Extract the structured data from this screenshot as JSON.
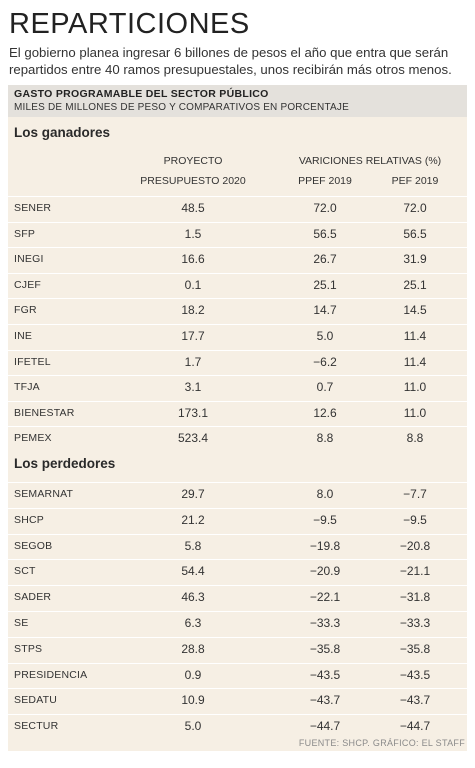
{
  "title": "REPARTICIONES",
  "subtitle": "El gobierno planea ingresar 6 billones de pesos el año que entra que serán repartidos entre 40 ramos presupuestales, unos recibirán más otros menos.",
  "panel": {
    "header_title": "GASTO PROGRAMABLE DEL SECTOR PÚBLICO",
    "header_subtitle": "MILES DE MILLONES DE PESO Y COMPARATIVOS EN PORCENTAJE"
  },
  "columns": {
    "proyecto_line1": "PROYECTO",
    "proyecto_line2": "PRESUPUESTO 2020",
    "variaciones": "VARICIONES RELATIVAS (%)",
    "ppef": "PPEF 2019",
    "pef": "PEF 2019"
  },
  "footer": "FUENTE: SHCP. GRÁFICO: EL STAFF",
  "chart_data": {
    "type": "table",
    "columns": [
      "PROYECTO PRESUPUESTO 2020",
      "PPEF 2019",
      "PEF 2019"
    ],
    "sections": [
      {
        "title": "Los ganadores",
        "rows": [
          {
            "name": "SENER",
            "proyecto": "48.5",
            "ppef": "72.0",
            "pef": "72.0"
          },
          {
            "name": "SFP",
            "proyecto": "1.5",
            "ppef": "56.5",
            "pef": "56.5"
          },
          {
            "name": "INEGI",
            "proyecto": "16.6",
            "ppef": "26.7",
            "pef": "31.9"
          },
          {
            "name": "CJEF",
            "proyecto": "0.1",
            "ppef": "25.1",
            "pef": "25.1"
          },
          {
            "name": "FGR",
            "proyecto": "18.2",
            "ppef": "14.7",
            "pef": "14.5"
          },
          {
            "name": "INE",
            "proyecto": "17.7",
            "ppef": "5.0",
            "pef": "11.4"
          },
          {
            "name": "IFETEL",
            "proyecto": "1.7",
            "ppef": "−6.2",
            "pef": "11.4"
          },
          {
            "name": "TFJA",
            "proyecto": "3.1",
            "ppef": "0.7",
            "pef": "11.0"
          },
          {
            "name": "BIENESTAR",
            "proyecto": "173.1",
            "ppef": "12.6",
            "pef": "11.0"
          },
          {
            "name": "PEMEX",
            "proyecto": "523.4",
            "ppef": "8.8",
            "pef": "8.8"
          }
        ]
      },
      {
        "title": "Los perdedores",
        "rows": [
          {
            "name": "SEMARNAT",
            "proyecto": "29.7",
            "ppef": "8.0",
            "pef": "−7.7"
          },
          {
            "name": "SHCP",
            "proyecto": "21.2",
            "ppef": "−9.5",
            "pef": "−9.5"
          },
          {
            "name": "SEGOB",
            "proyecto": "5.8",
            "ppef": "−19.8",
            "pef": "−20.8"
          },
          {
            "name": "SCT",
            "proyecto": "54.4",
            "ppef": "−20.9",
            "pef": "−21.1"
          },
          {
            "name": "SADER",
            "proyecto": "46.3",
            "ppef": "−22.1",
            "pef": "−31.8"
          },
          {
            "name": "SE",
            "proyecto": "6.3",
            "ppef": "−33.3",
            "pef": "−33.3"
          },
          {
            "name": "STPS",
            "proyecto": "28.8",
            "ppef": "−35.8",
            "pef": "−35.8"
          },
          {
            "name": "PRESIDENCIA",
            "proyecto": "0.9",
            "ppef": "−43.5",
            "pef": "−43.5"
          },
          {
            "name": "SEDATU",
            "proyecto": "10.9",
            "ppef": "−43.7",
            "pef": "−43.7"
          },
          {
            "name": "SECTUR",
            "proyecto": "5.0",
            "ppef": "−44.7",
            "pef": "−44.7"
          }
        ]
      }
    ]
  }
}
